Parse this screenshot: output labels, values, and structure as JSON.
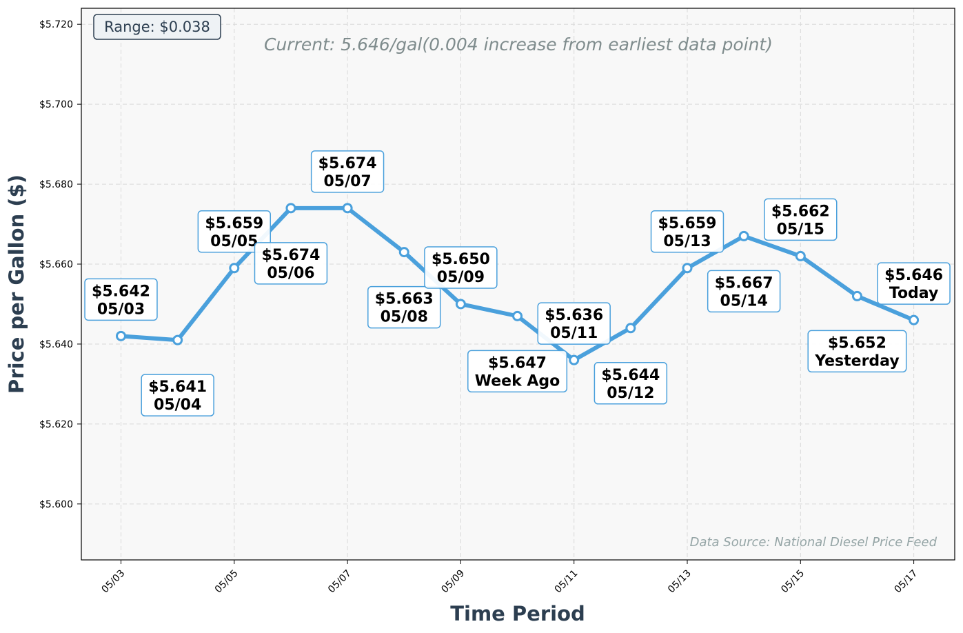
{
  "chart_data": {
    "type": "line",
    "xlabel": "Time Period",
    "ylabel": "Price per Gallon ($)",
    "ylim": [
      5.586,
      5.724
    ],
    "y_ticks": [
      5.6,
      5.62,
      5.64,
      5.66,
      5.68,
      5.7,
      5.72
    ],
    "y_tick_labels": [
      "$5.600",
      "$5.620",
      "$5.640",
      "$5.660",
      "$5.680",
      "$5.700",
      "$5.720"
    ],
    "x_ticks": [
      "05/03",
      "05/05",
      "05/07",
      "05/09",
      "05/11",
      "05/13",
      "05/15",
      "05/17"
    ],
    "grid": true,
    "series": [
      {
        "color": "#4aa0dc",
        "points": [
          {
            "x": "05/03",
            "y": 5.642,
            "price": "$5.642",
            "tag": "05/03"
          },
          {
            "x": "05/04",
            "y": 5.641,
            "price": "$5.641",
            "tag": "05/04"
          },
          {
            "x": "05/05",
            "y": 5.659,
            "price": "$5.659",
            "tag": "05/05"
          },
          {
            "x": "05/06",
            "y": 5.674,
            "price": "$5.674",
            "tag": "05/06"
          },
          {
            "x": "05/07",
            "y": 5.674,
            "price": "$5.674",
            "tag": "05/07"
          },
          {
            "x": "05/08",
            "y": 5.663,
            "price": "$5.663",
            "tag": "05/08"
          },
          {
            "x": "05/09",
            "y": 5.65,
            "price": "$5.650",
            "tag": "05/09"
          },
          {
            "x": "05/10",
            "y": 5.647,
            "price": "$5.647",
            "tag": "Week Ago"
          },
          {
            "x": "05/11",
            "y": 5.636,
            "price": "$5.636",
            "tag": "05/11"
          },
          {
            "x": "05/12",
            "y": 5.644,
            "price": "$5.644",
            "tag": "05/12"
          },
          {
            "x": "05/13",
            "y": 5.659,
            "price": "$5.659",
            "tag": "05/13"
          },
          {
            "x": "05/14",
            "y": 5.667,
            "price": "$5.667",
            "tag": "05/14"
          },
          {
            "x": "05/15",
            "y": 5.662,
            "price": "$5.662",
            "tag": "05/15"
          },
          {
            "x": "05/16",
            "y": 5.652,
            "price": "$5.652",
            "tag": "Yesterday"
          },
          {
            "x": "05/17",
            "y": 5.646,
            "price": "$5.646",
            "tag": "Today"
          }
        ]
      }
    ],
    "annotations": {
      "range": "Range: $0.038",
      "current": "Current: 5.646/gal(0.004 increase from earliest data point)",
      "source": "Data Source: National Diesel Price Feed"
    }
  },
  "colors": {
    "line": "#4aa0dc",
    "plot_bg": "#f8f8f8",
    "axis_title": "#2c3e50",
    "note": "#7f8c8d",
    "source": "#95a5a6"
  }
}
